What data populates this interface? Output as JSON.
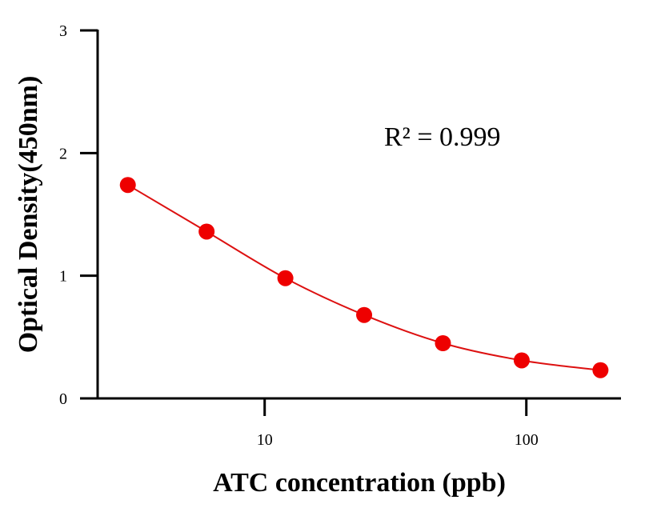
{
  "chart_data": {
    "type": "scatter",
    "title": "",
    "xlabel": "ATC concentration (ppb)",
    "ylabel": "Optical Density(450nm)",
    "x_scale": "log",
    "xlim": [
      2.3,
      230
    ],
    "ylim": [
      0,
      3
    ],
    "x_ticks": [
      10,
      100
    ],
    "y_ticks": [
      0,
      1,
      2,
      3
    ],
    "grid": false,
    "legend": "none",
    "annotation": "R² = 0.999",
    "series": [
      {
        "x": [
          3,
          6,
          12,
          24,
          48,
          96,
          192
        ],
        "y": [
          1.74,
          1.36,
          0.98,
          0.68,
          0.45,
          0.31,
          0.23
        ],
        "marker_color": "#ee0000",
        "line_color": "#dd1111",
        "fit_line": true
      }
    ]
  }
}
